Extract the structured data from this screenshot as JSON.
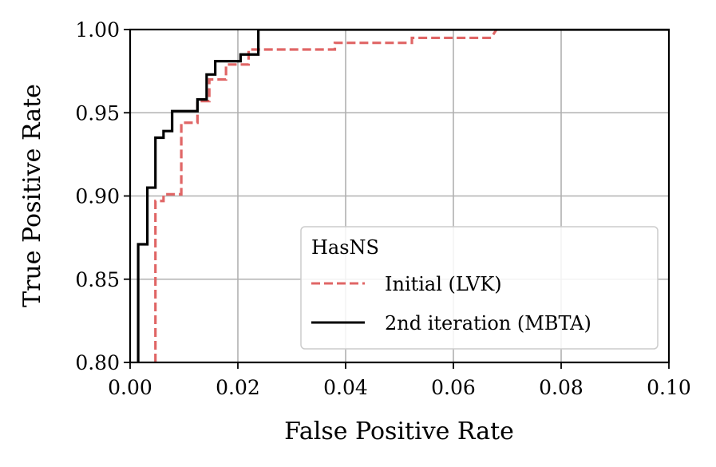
{
  "chart_data": {
    "type": "line",
    "title": "",
    "xlabel": "False Positive Rate",
    "ylabel": "True Positive Rate",
    "xlim": [
      0,
      0.1
    ],
    "ylim": [
      0.8,
      1.0
    ],
    "grid": true,
    "xticks": [
      0.0,
      0.02,
      0.04,
      0.06,
      0.08,
      0.1
    ],
    "xtick_labels": [
      "0.00",
      "0.02",
      "0.04",
      "0.06",
      "0.08",
      "0.10"
    ],
    "yticks": [
      0.8,
      0.85,
      0.9,
      0.95,
      1.0
    ],
    "ytick_labels": [
      "0.80",
      "0.85",
      "0.90",
      "0.95",
      "1.00"
    ],
    "legend": {
      "title": "HasNS",
      "position": "lower-right"
    },
    "series": [
      {
        "name": "Initial (LVK)",
        "color": "#e06666",
        "style": "dashed",
        "x": [
          0.0047,
          0.0047,
          0.0062,
          0.0062,
          0.0095,
          0.0095,
          0.0125,
          0.0125,
          0.0147,
          0.0147,
          0.0178,
          0.0178,
          0.022,
          0.022,
          0.038,
          0.038,
          0.0523,
          0.0523,
          0.067,
          0.068
        ],
        "y": [
          0.8,
          0.897,
          0.897,
          0.901,
          0.901,
          0.944,
          0.944,
          0.957,
          0.957,
          0.97,
          0.97,
          0.979,
          0.979,
          0.988,
          0.988,
          0.992,
          0.992,
          0.995,
          0.995,
          1.0
        ]
      },
      {
        "name": "2nd iteration (MBTA)",
        "color": "#000000",
        "style": "solid",
        "x": [
          0.0015,
          0.0015,
          0.0032,
          0.0032,
          0.0047,
          0.0047,
          0.0062,
          0.0062,
          0.0078,
          0.0078,
          0.0125,
          0.0125,
          0.0142,
          0.0142,
          0.0158,
          0.0158,
          0.0205,
          0.0205,
          0.0238,
          0.0238,
          0.1
        ],
        "y": [
          0.8,
          0.871,
          0.871,
          0.905,
          0.905,
          0.935,
          0.935,
          0.939,
          0.939,
          0.951,
          0.951,
          0.958,
          0.958,
          0.973,
          0.973,
          0.981,
          0.981,
          0.985,
          0.985,
          1.0,
          1.0
        ]
      }
    ]
  }
}
